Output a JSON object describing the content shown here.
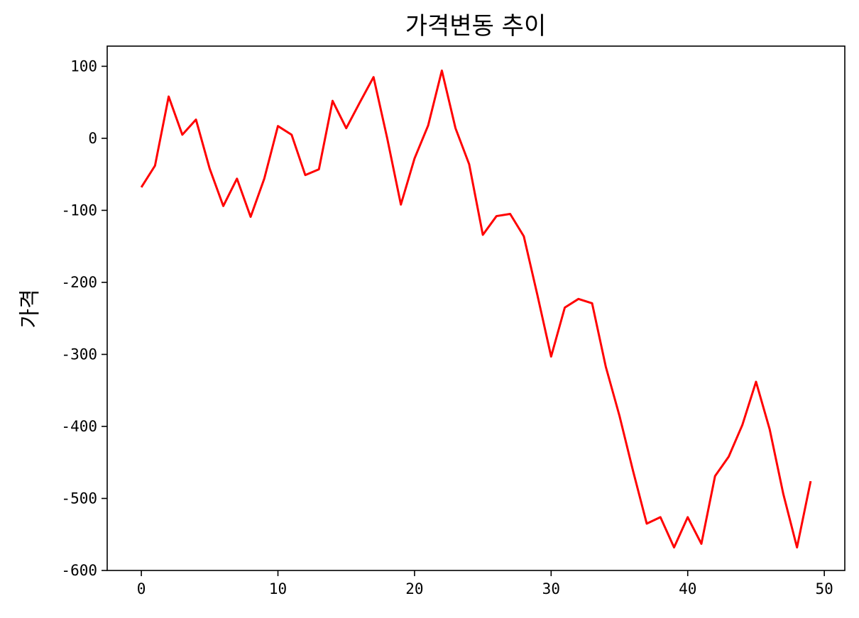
{
  "chart_data": {
    "type": "line",
    "title": "가격변동 추이",
    "xlabel": "",
    "ylabel": "가격",
    "xlim": [
      -2.5,
      51.5
    ],
    "ylim": [
      -600,
      128
    ],
    "x_ticks": [
      0,
      10,
      20,
      30,
      40,
      50
    ],
    "y_ticks": [
      100,
      0,
      -100,
      -200,
      -300,
      -400,
      -500,
      -600
    ],
    "grid": false,
    "legend": "none",
    "series": [
      {
        "color": "#ff0000",
        "x": [
          0,
          1,
          2,
          3,
          4,
          5,
          6,
          7,
          8,
          9,
          10,
          11,
          12,
          13,
          14,
          15,
          16,
          17,
          18,
          19,
          20,
          21,
          22,
          23,
          24,
          25,
          26,
          27,
          28,
          29,
          30,
          31,
          32,
          33,
          34,
          35,
          36,
          37,
          38,
          39,
          40,
          41,
          42,
          43,
          44,
          45,
          46,
          47,
          48,
          49
        ],
        "values": [
          -68,
          -38,
          58,
          5,
          26,
          -42,
          -94,
          -56,
          -109,
          -56,
          17,
          5,
          -51,
          -43,
          52,
          14,
          50,
          85,
          0,
          -92,
          -28,
          18,
          94,
          14,
          -36,
          -134,
          -108,
          -105,
          -136,
          -218,
          -303,
          -235,
          -223,
          -229,
          -317,
          -385,
          -462,
          -535,
          -526,
          -568,
          -526,
          -563,
          -469,
          -442,
          -398,
          -338,
          -404,
          -494,
          -568,
          -476
        ]
      }
    ]
  }
}
